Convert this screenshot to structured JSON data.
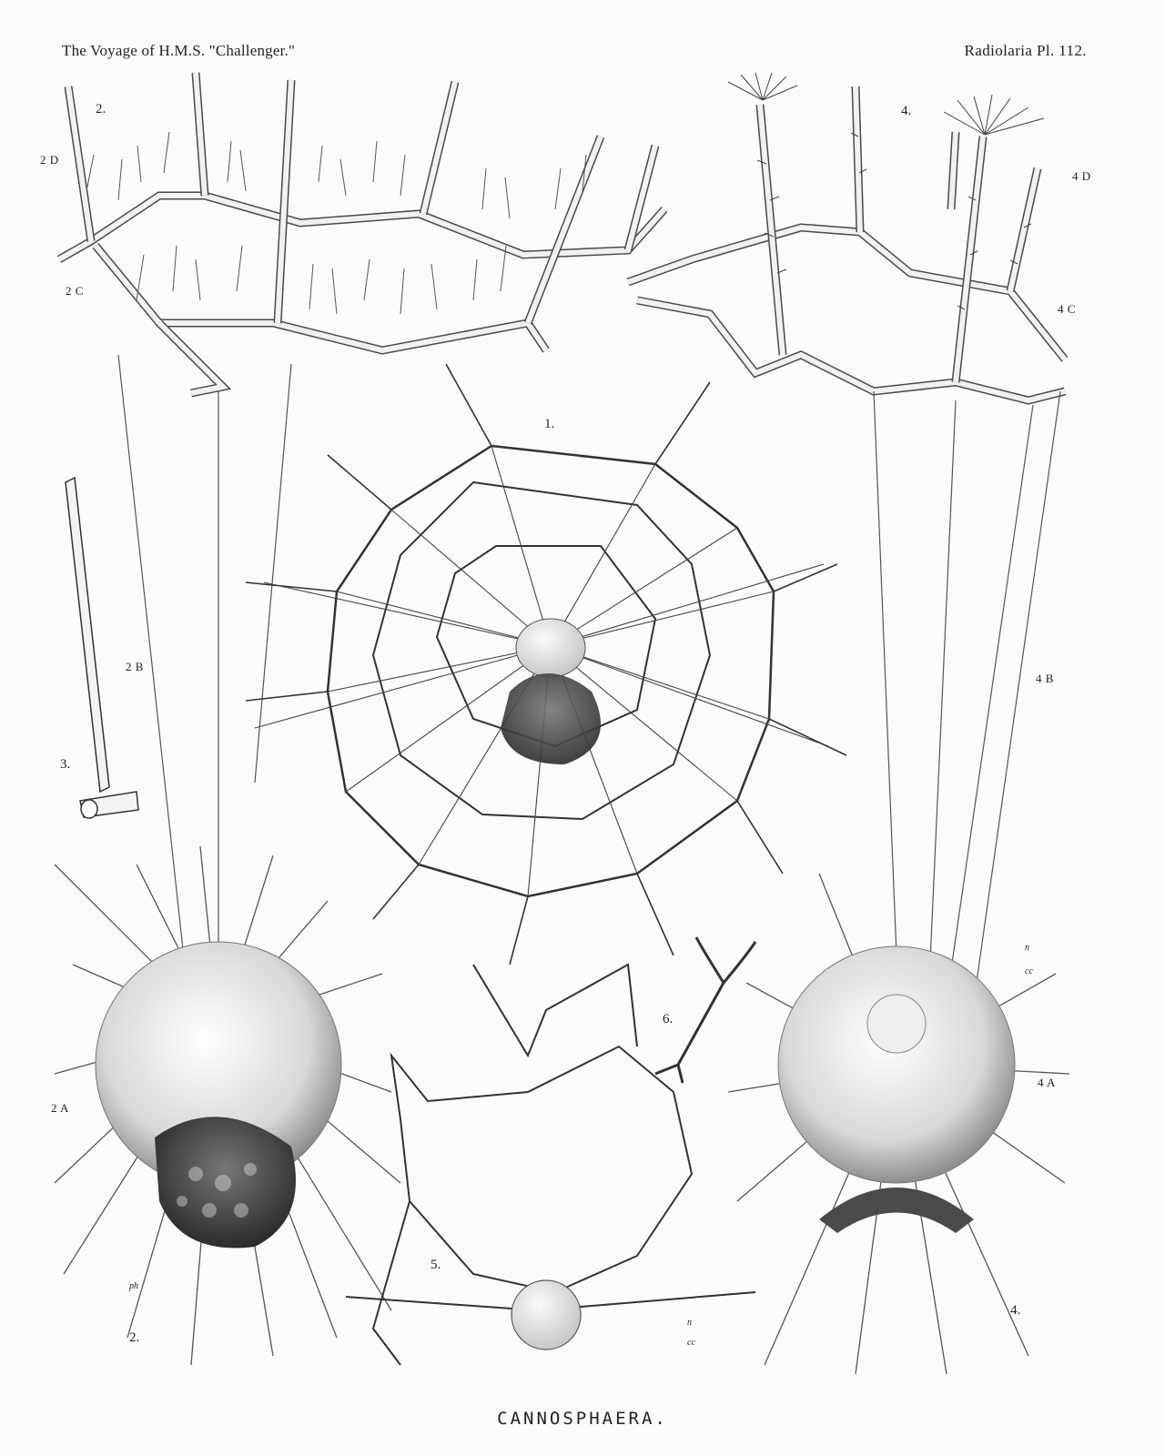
{
  "header": {
    "left": "The Voyage of H.M.S. \"Challenger.\"",
    "right": "Radiolaria Pl. 112."
  },
  "plate_title": "CANNOSPHAERA.",
  "figure_numbers": {
    "fig1": "1.",
    "fig2_top": "2.",
    "fig2_bottom": "2.",
    "fig3": "3.",
    "fig4_top": "4.",
    "fig4_bottom": "4.",
    "fig5": "5.",
    "fig6": "6."
  },
  "part_labels": {
    "l2A": "2 A",
    "l2B": "2 B",
    "l2C": "2 C",
    "l2D": "2 D",
    "l4A": "4 A",
    "l4B": "4 B",
    "l4C": "4 C",
    "l4D": "4 D"
  },
  "small_letters": {
    "ph": "ph",
    "n4": "n",
    "cc4": "cc",
    "n5": "n",
    "cc5": "cc"
  },
  "colors": {
    "ink": "#2a2a2a",
    "paper": "#fbfbf9",
    "shade": "#6b6b6b"
  }
}
